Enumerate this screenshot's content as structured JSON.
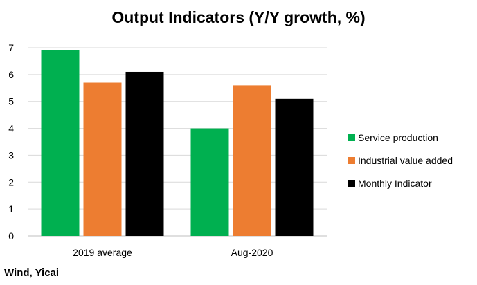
{
  "title": "Output Indicators (Y/Y growth, %)",
  "source": "Wind, Yicai",
  "chart_data": {
    "type": "bar",
    "categories": [
      "2019 average",
      "Aug-2020"
    ],
    "series": [
      {
        "name": "Service production",
        "color": "#00B050",
        "values": [
          6.9,
          4.0
        ]
      },
      {
        "name": "Industrial value added",
        "color": "#ED7D31",
        "values": [
          5.7,
          5.6
        ]
      },
      {
        "name": "Monthly Indicator",
        "color": "#000000",
        "values": [
          6.1,
          5.1
        ]
      }
    ],
    "ylim": [
      0,
      7
    ],
    "yticks": [
      0,
      1,
      2,
      3,
      4,
      5,
      6,
      7
    ],
    "grid": true,
    "legend_position": "right"
  }
}
